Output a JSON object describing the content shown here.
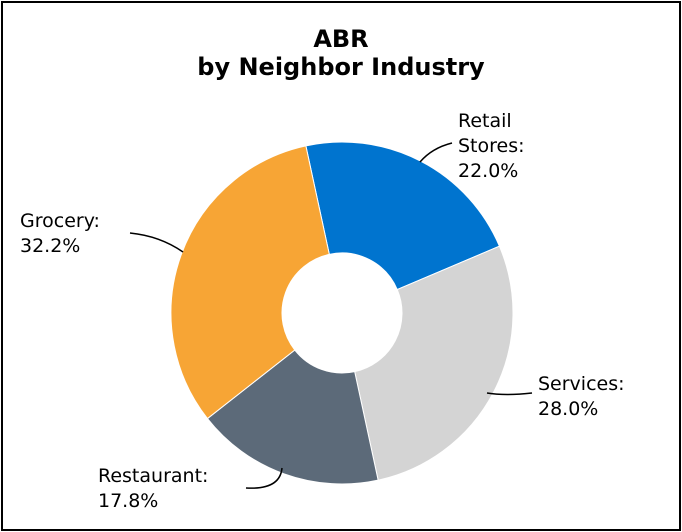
{
  "chart_data": {
    "type": "pie",
    "donut": true,
    "title": [
      "ABR",
      "by Neighbor Industry"
    ],
    "slices": [
      {
        "name": "Retail Stores",
        "label": [
          "Retail",
          "Stores:",
          "22.0%"
        ],
        "value": 22.0,
        "color": "#0074CF"
      },
      {
        "name": "Services",
        "label": [
          "Services:",
          "28.0%"
        ],
        "value": 28.0,
        "color": "#D4D4D4"
      },
      {
        "name": "Restaurant",
        "label": [
          "Restaurant:",
          "17.8%"
        ],
        "value": 17.8,
        "color": "#5C6A79"
      },
      {
        "name": "Grocery",
        "label": [
          "Grocery:",
          "32.2%"
        ],
        "value": 32.2,
        "color": "#F7A535"
      }
    ],
    "legend": "none"
  }
}
